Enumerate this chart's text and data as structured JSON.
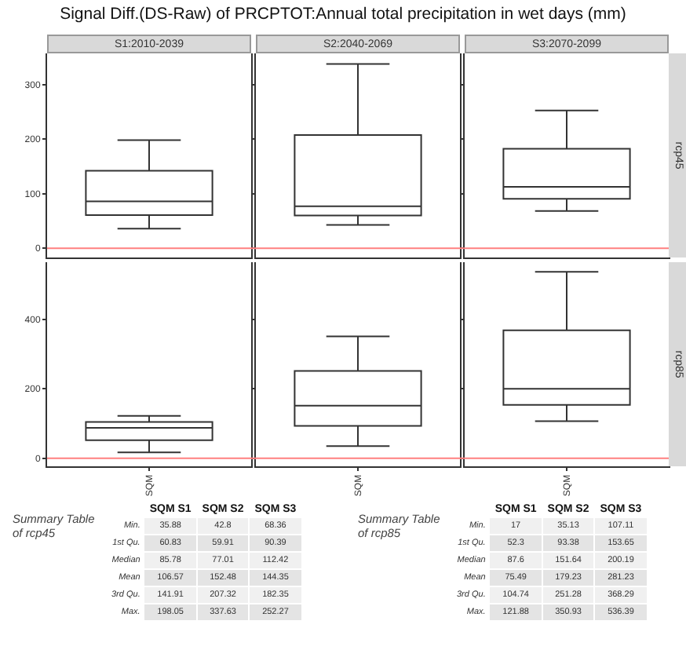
{
  "chart_data": [
    {
      "type": "box",
      "title": "Signal Diff.(DS-Raw) of PRCPTOT:Annual total precipitation in wet days (mm)",
      "y2label": "rcp45",
      "categories": [
        "S1:2010-2039",
        "S2:2040-2069",
        "S3:2070-2099"
      ],
      "boxes": [
        {
          "low": 35.88,
          "q1": 60.83,
          "median": 85.78,
          "q3": 141.91,
          "high": 198.05
        },
        {
          "low": 42.8,
          "q1": 59.91,
          "median": 77.01,
          "q3": 207.32,
          "high": 337.63
        },
        {
          "low": 68.36,
          "q1": 90.39,
          "median": 112.42,
          "q3": 182.35,
          "high": 252.27
        }
      ],
      "ylim": [
        -17,
        357
      ],
      "yticks": [
        0,
        100,
        200,
        300
      ],
      "ref_lines": [
        {
          "axis": "y",
          "value": 0,
          "color": "#ff8080"
        }
      ],
      "color": "#333333",
      "annotations": [
        "Summary Table of rcp45",
        "SQM S1",
        "SQM S2",
        "SQM S3",
        "Min.",
        "35.88",
        "42.8",
        "68.36",
        "1st Qu.",
        "60.83",
        "59.91",
        "90.39",
        "Median",
        "85.78",
        "77.01",
        "112.42",
        "Mean",
        "106.57",
        "152.48",
        "144.35",
        "3rd Qu.",
        "141.91",
        "207.32",
        "182.35",
        "Max.",
        "198.05",
        "337.63",
        "252.27"
      ]
    },
    {
      "type": "box",
      "y2label": "rcp85",
      "categories": [
        "SQM",
        "SQM",
        "SQM"
      ],
      "boxes": [
        {
          "low": 17,
          "q1": 52.3,
          "median": 87.6,
          "q3": 104.74,
          "high": 121.88
        },
        {
          "low": 35.13,
          "q1": 93.38,
          "median": 151.64,
          "q3": 251.28,
          "high": 350.93
        },
        {
          "low": 107.11,
          "q1": 153.65,
          "median": 200.19,
          "q3": 368.29,
          "high": 536.39
        }
      ],
      "ylim": [
        -23,
        564
      ],
      "yticks": [
        0,
        200,
        400
      ],
      "ref_lines": [
        {
          "axis": "y",
          "value": 0,
          "color": "#ff8080"
        }
      ],
      "color": "#333333",
      "annotations": [
        "Summary Table of rcp85",
        "SQM S1",
        "SQM S2",
        "SQM S3",
        "Min.",
        "17",
        "35.13",
        "107.11",
        "1st Qu.",
        "52.3",
        "93.38",
        "153.65",
        "Median",
        "87.6",
        "151.64",
        "200.19",
        "Mean",
        "75.49",
        "179.23",
        "281.23",
        "3rd Qu.",
        "104.74",
        "251.28",
        "368.29",
        "Max.",
        "121.88",
        "350.93",
        "536.39"
      ]
    }
  ]
}
